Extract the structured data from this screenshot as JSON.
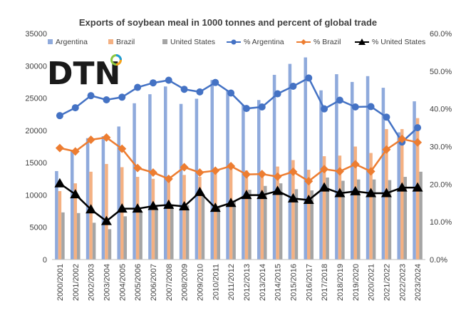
{
  "chart_data": {
    "type": "bar",
    "title": "Exports of soybean meal in 1000 tonnes and percent of global trade",
    "categories": [
      "2000/2001",
      "2001/2002",
      "2002/2003",
      "2003/2004",
      "2004/2005",
      "2005/2006",
      "2006/2007",
      "2007/2008",
      "2008/2009",
      "2009/2010",
      "2010/2011",
      "2011/2012",
      "2012/2013",
      "2013/2014",
      "2014/2015",
      "2015/2016",
      "2016/2017",
      "2017/2018",
      "2018/2019",
      "2019/2020",
      "2020/2021",
      "2021/2022",
      "2022/2023",
      "2023/2024"
    ],
    "y_left": {
      "min": 0,
      "max": 35000,
      "step": 5000,
      "ticks": [
        "0",
        "5000",
        "10000",
        "15000",
        "20000",
        "25000",
        "30000",
        "35000"
      ]
    },
    "y_right": {
      "min": 0,
      "max": 60,
      "step": 10,
      "ticks": [
        "0.0%",
        "10.0%",
        "20.0%",
        "30.0%",
        "40.0%",
        "50.0%",
        "60.0%"
      ]
    },
    "series": [
      {
        "name": "Argentina",
        "kind": "bar",
        "axis": "left",
        "color": "#8faadc",
        "values": [
          13700,
          16900,
          18800,
          19100,
          20600,
          24200,
          25600,
          26800,
          24100,
          24900,
          27800,
          26100,
          23900,
          24700,
          28600,
          30300,
          31300,
          26200,
          28700,
          27500,
          28400,
          26600,
          19700,
          24500
        ]
      },
      {
        "name": "Brazil",
        "kind": "bar",
        "axis": "left",
        "color": "#f4b183",
        "values": [
          10600,
          11800,
          13600,
          14800,
          14300,
          12800,
          12500,
          12300,
          13100,
          12800,
          13700,
          14700,
          13800,
          13500,
          14400,
          15400,
          13900,
          16000,
          16100,
          17500,
          16500,
          20200,
          20200,
          21900
        ]
      },
      {
        "name": "United States",
        "kind": "bar",
        "axis": "left",
        "color": "#a5a5a5",
        "values": [
          7300,
          7200,
          5700,
          4700,
          6700,
          7300,
          8200,
          8300,
          8400,
          10100,
          8200,
          9100,
          10800,
          11400,
          11800,
          10900,
          10700,
          12700,
          12200,
          12400,
          12400,
          12300,
          12800,
          13600
        ]
      },
      {
        "name": "% Argentina",
        "kind": "line",
        "axis": "right",
        "color": "#4472c4",
        "marker": "circle",
        "values": [
          38.2,
          40.3,
          43.5,
          42.4,
          43.1,
          45.7,
          46.9,
          47.6,
          45.2,
          44.5,
          47.0,
          44.2,
          40.1,
          40.5,
          44.0,
          46.0,
          48.2,
          40.0,
          42.3,
          40.5,
          40.6,
          37.8,
          31.2,
          35.0
        ]
      },
      {
        "name": "% Brazil",
        "kind": "line",
        "axis": "right",
        "color": "#ed7d31",
        "marker": "diamond",
        "values": [
          29.6,
          28.7,
          31.8,
          32.4,
          29.4,
          24.3,
          23.1,
          21.4,
          24.5,
          23.1,
          23.6,
          24.8,
          22.6,
          22.7,
          22.0,
          23.3,
          20.8,
          24.0,
          23.4,
          25.3,
          23.4,
          29.2,
          32.0,
          31.1
        ]
      },
      {
        "name": "% United States",
        "kind": "line",
        "axis": "right",
        "color": "#000000",
        "marker": "triangle",
        "values": [
          20.2,
          17.3,
          13.3,
          10.2,
          13.5,
          13.5,
          14.2,
          14.5,
          14.1,
          17.9,
          13.7,
          15.0,
          17.1,
          17.1,
          18.2,
          16.2,
          15.8,
          19.1,
          17.6,
          18.1,
          17.6,
          17.6,
          19.1,
          19.1
        ]
      }
    ],
    "legend_position": "top",
    "grid": false
  },
  "logo": {
    "text": "DTN"
  }
}
